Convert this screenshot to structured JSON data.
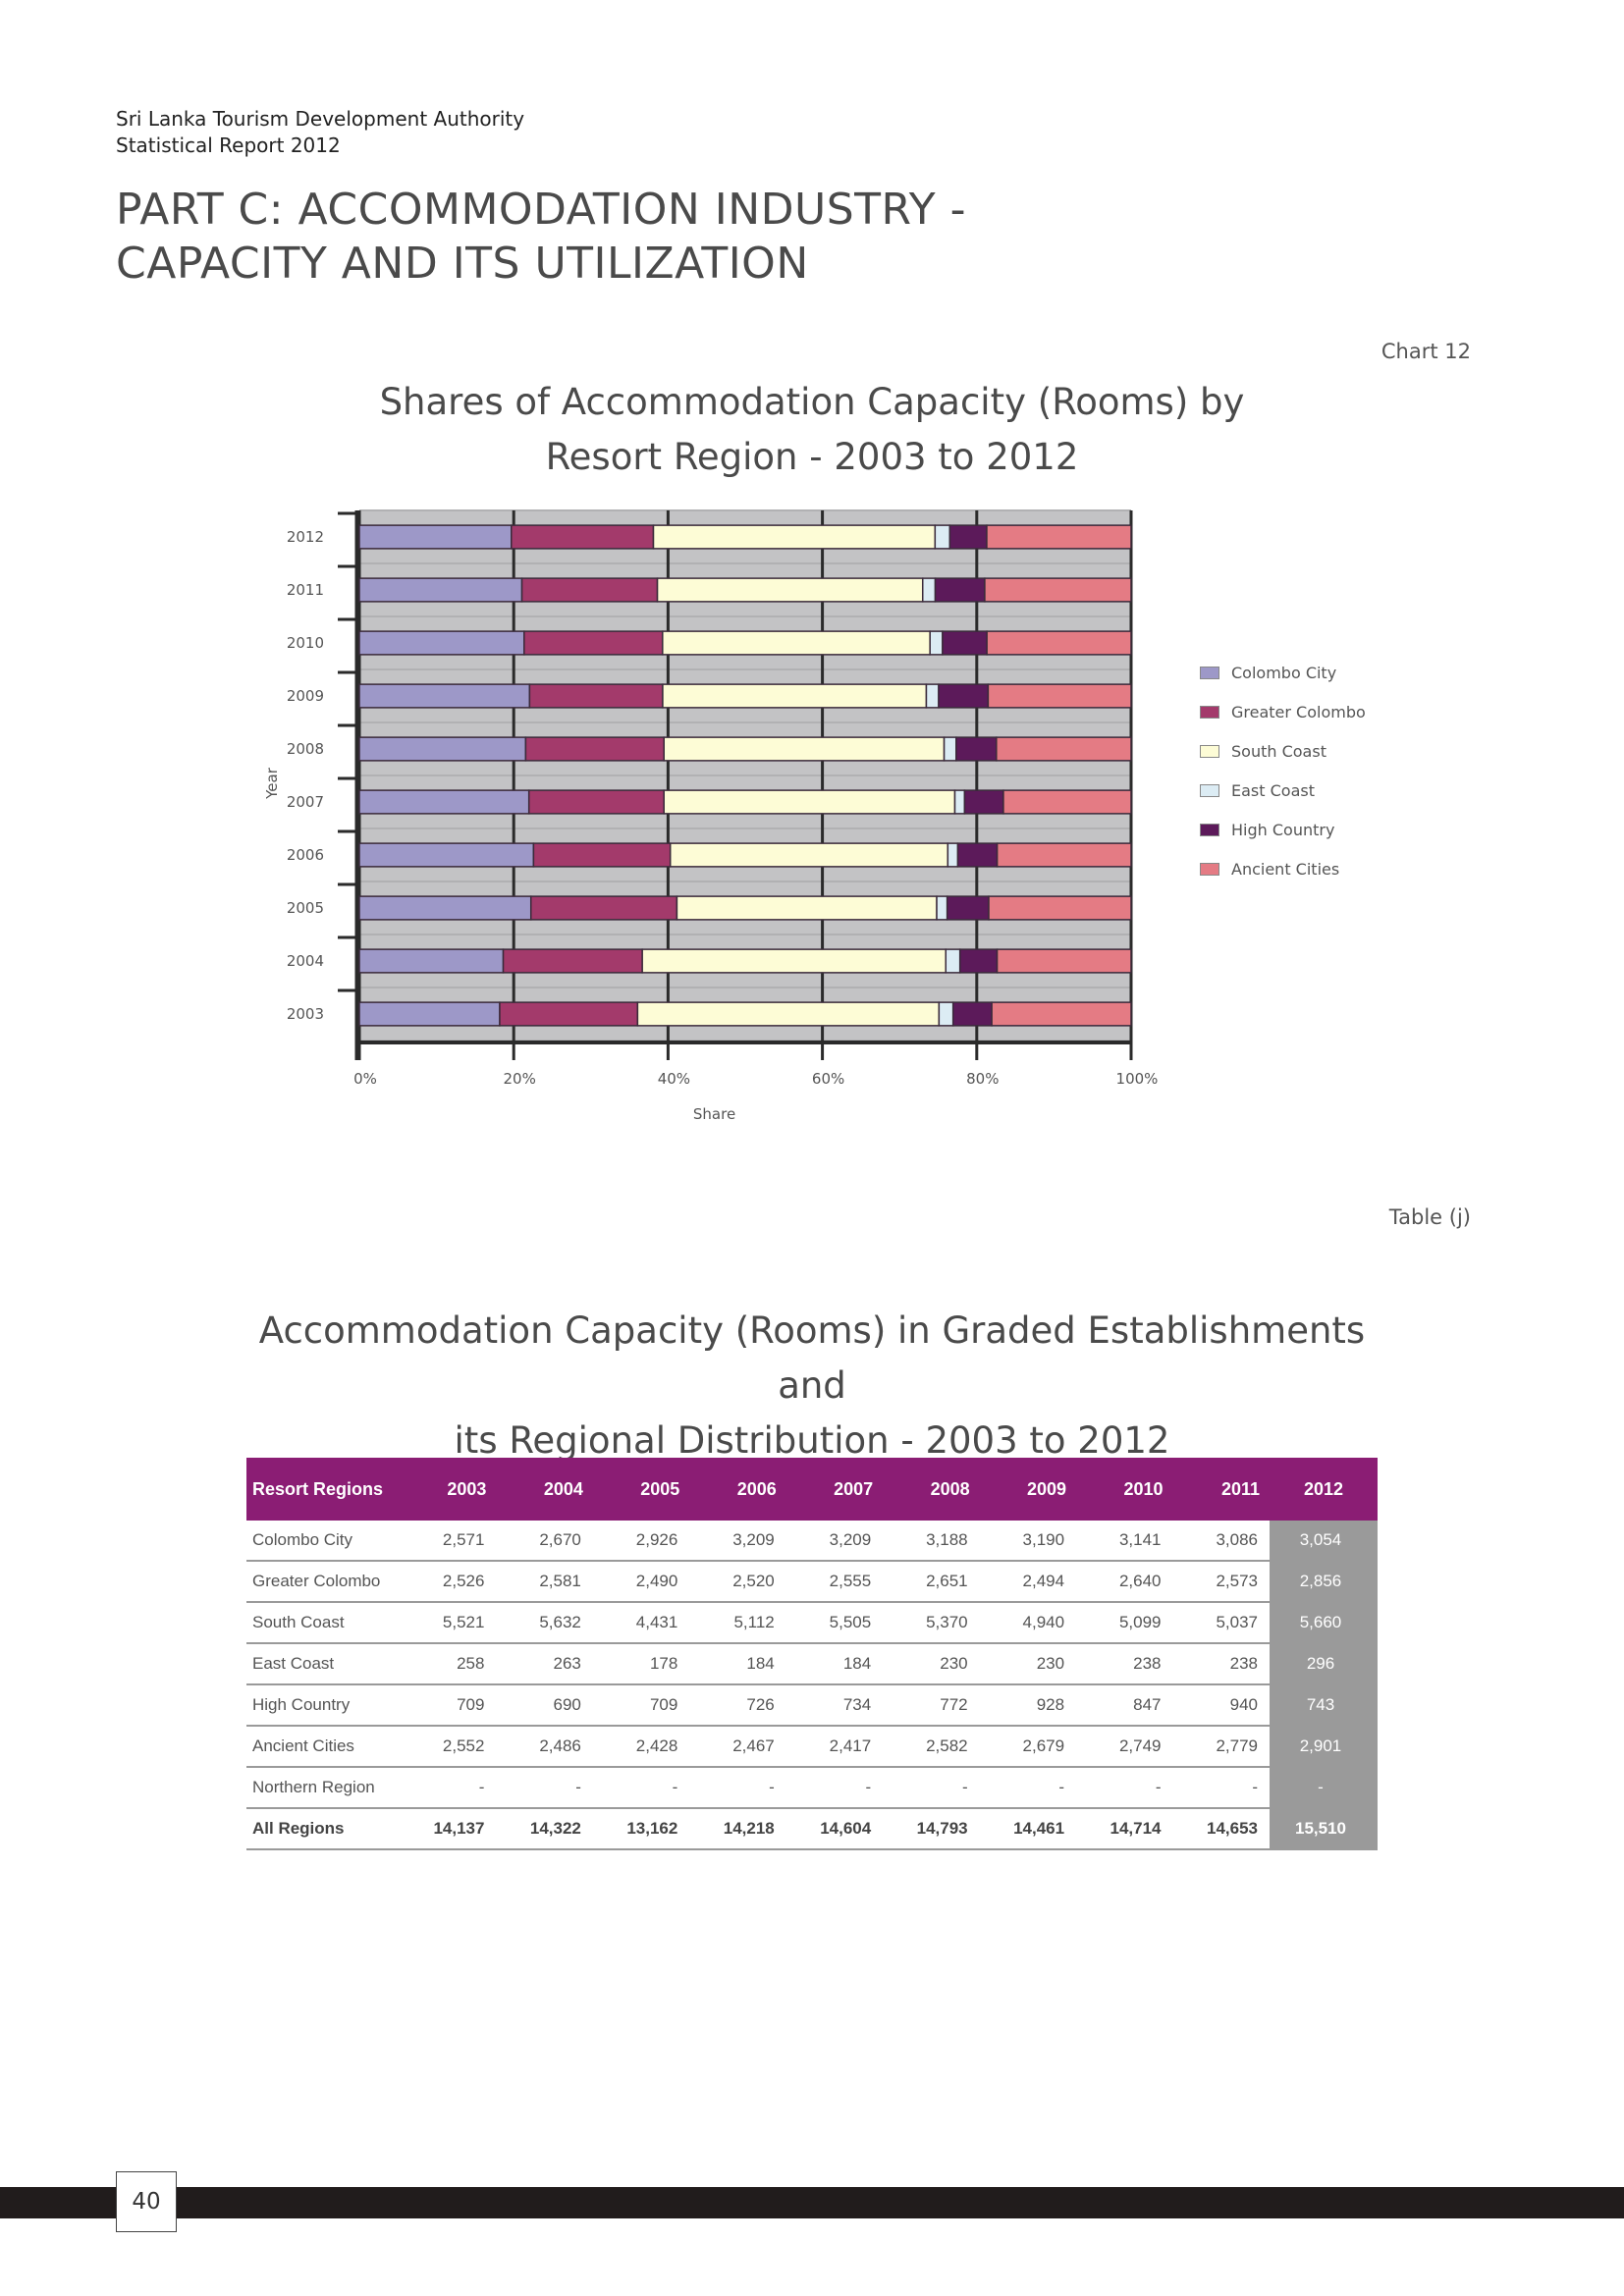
{
  "header": {
    "org_line1": "Sri Lanka Tourism Development Authority",
    "org_line2": "Statistical Report 2012",
    "part_title_line1": "PART C: ACCOMMODATION INDUSTRY -",
    "part_title_line2": "CAPACITY AND ITS UTILIZATION"
  },
  "chart_label": "Chart 12",
  "chart_title_line1": "Shares of Accommodation Capacity (Rooms) by",
  "chart_title_line2": "Resort Region - 2003 to 2012",
  "chart_data": {
    "type": "bar",
    "orientation": "horizontal",
    "stacked": "percent",
    "title": "Shares of Accommodation Capacity (Rooms) by Resort Region - 2003 to 2012",
    "xlabel": "Share",
    "ylabel": "Year",
    "xlim": [
      0,
      100
    ],
    "x_ticks": [
      "0%",
      "20%",
      "40%",
      "60%",
      "80%",
      "100%"
    ],
    "categories": [
      "2003",
      "2004",
      "2005",
      "2006",
      "2007",
      "2008",
      "2009",
      "2010",
      "2011",
      "2012"
    ],
    "legend_position": "right",
    "grid": true,
    "series": [
      {
        "name": "Colombo City",
        "color": "#9d98c8",
        "values": [
          2571,
          2670,
          2926,
          3209,
          3209,
          3188,
          3190,
          3141,
          3086,
          3054
        ]
      },
      {
        "name": "Greater Colombo",
        "color": "#a33a6b",
        "values": [
          2526,
          2581,
          2490,
          2520,
          2555,
          2651,
          2494,
          2640,
          2573,
          2856
        ]
      },
      {
        "name": "South Coast",
        "color": "#fdfcd6",
        "values": [
          5521,
          5632,
          4431,
          5112,
          5505,
          5370,
          4940,
          5099,
          5037,
          5660
        ]
      },
      {
        "name": "East Coast",
        "color": "#dcecf4",
        "values": [
          258,
          263,
          178,
          184,
          184,
          230,
          230,
          238,
          238,
          296
        ]
      },
      {
        "name": "High Country",
        "color": "#5c1a5a",
        "values": [
          709,
          690,
          709,
          726,
          734,
          772,
          928,
          847,
          940,
          743
        ]
      },
      {
        "name": "Ancient Cities",
        "color": "#e47b84",
        "values": [
          2552,
          2486,
          2428,
          2467,
          2417,
          2582,
          2679,
          2749,
          2779,
          2901
        ]
      }
    ]
  },
  "table_label": "Table (j)",
  "table_title_line1": "Accommodation Capacity (Rooms) in Graded Establishments and",
  "table_title_line2": "its Regional Distribution - 2003 to 2012",
  "table": {
    "headers": [
      "Resort Regions",
      "2003",
      "2004",
      "2005",
      "2006",
      "2007",
      "2008",
      "2009",
      "2010",
      "2011",
      "2012"
    ],
    "rows": [
      [
        "Colombo City",
        "2,571",
        "2,670",
        "2,926",
        "3,209",
        "3,209",
        "3,188",
        "3,190",
        "3,141",
        "3,086",
        "3,054"
      ],
      [
        "Greater Colombo",
        "2,526",
        "2,581",
        "2,490",
        "2,520",
        "2,555",
        "2,651",
        "2,494",
        "2,640",
        "2,573",
        "2,856"
      ],
      [
        "South Coast",
        "5,521",
        "5,632",
        "4,431",
        "5,112",
        "5,505",
        "5,370",
        "4,940",
        "5,099",
        "5,037",
        "5,660"
      ],
      [
        "East Coast",
        "258",
        "263",
        "178",
        "184",
        "184",
        "230",
        "230",
        "238",
        "238",
        "296"
      ],
      [
        "High Country",
        "709",
        "690",
        "709",
        "726",
        "734",
        "772",
        "928",
        "847",
        "940",
        "743"
      ],
      [
        "Ancient Cities",
        "2,552",
        "2,486",
        "2,428",
        "2,467",
        "2,417",
        "2,582",
        "2,679",
        "2,749",
        "2,779",
        "2,901"
      ],
      [
        "Northern Region",
        "-",
        "-",
        "-",
        "-",
        "-",
        "-",
        "-",
        "-",
        "-",
        "-"
      ],
      [
        "All Regions",
        "14,137",
        "14,322",
        "13,162",
        "14,218",
        "14,604",
        "14,793",
        "14,461",
        "14,714",
        "14,653",
        "15,510"
      ]
    ]
  },
  "page_number": "40"
}
